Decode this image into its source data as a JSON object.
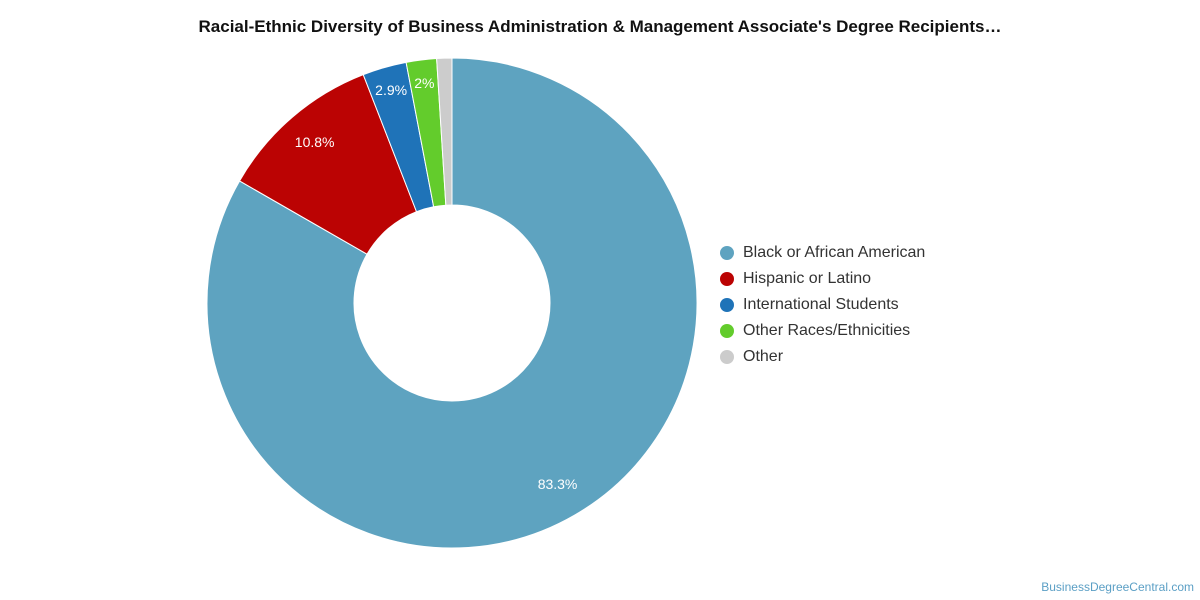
{
  "chart_data": {
    "type": "pie",
    "title": "Racial-Ethnic Diversity of Business Administration & Management Associate's Degree Recipients…",
    "legend_position": "right",
    "donut": true,
    "slices": [
      {
        "name": "Black or African American",
        "value": 83.3,
        "label": "83.3%",
        "color": "#5ea3c0"
      },
      {
        "name": "Hispanic or Latino",
        "value": 10.8,
        "label": "10.8%",
        "color": "#bb0303"
      },
      {
        "name": "International Students",
        "value": 2.9,
        "label": "2.9%",
        "color": "#1f73b8"
      },
      {
        "name": "Other Races/Ethnicities",
        "value": 2.0,
        "label": "2%",
        "color": "#63cc2c"
      },
      {
        "name": "Other",
        "value": 1.0,
        "label": "",
        "color": "#cccccc"
      }
    ]
  },
  "credit": "BusinessDegreeCentral.com"
}
